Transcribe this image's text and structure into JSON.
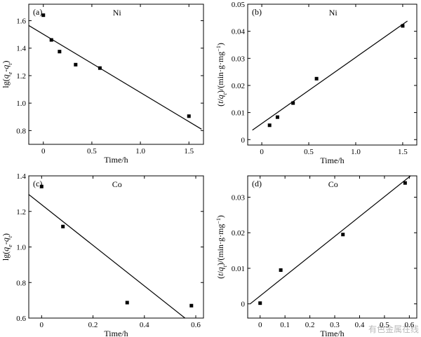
{
  "chart_data": [
    {
      "type": "scatter",
      "panel_label": "(a)",
      "annotation": "Ni",
      "xlabel": "Time/h",
      "ylabel": "lg(qe-qt)",
      "xlim": [
        -0.15,
        1.65
      ],
      "ylim": [
        0.7,
        1.72
      ],
      "xticks": [
        0,
        0.5,
        1.0,
        1.5
      ],
      "xtick_labels": [
        "0",
        "0.5",
        "1.0",
        "1.5"
      ],
      "yticks": [
        0.8,
        1.0,
        1.2,
        1.4,
        1.6
      ],
      "ytick_labels": [
        "0.8",
        "1.0",
        "1.2",
        "1.4",
        "1.6"
      ],
      "points": [
        [
          0.0,
          1.64
        ],
        [
          0.083,
          1.46
        ],
        [
          0.167,
          1.375
        ],
        [
          0.333,
          1.28
        ],
        [
          0.583,
          1.255
        ],
        [
          1.5,
          0.905
        ]
      ],
      "fit_line": [
        [
          -0.15,
          1.565
        ],
        [
          1.63,
          0.81
        ]
      ]
    },
    {
      "type": "scatter",
      "panel_label": "(b)",
      "annotation": "Ni",
      "xlabel": "Time/h",
      "ylabel": "(t/qt)/(min·g·mg⁻¹)",
      "xlim": [
        -0.15,
        1.65
      ],
      "ylim": [
        -0.002,
        0.05
      ],
      "xticks": [
        0,
        0.5,
        1.0,
        1.5
      ],
      "xtick_labels": [
        "0",
        "0.5",
        "1.0",
        "1.5"
      ],
      "yticks": [
        0,
        0.01,
        0.02,
        0.03,
        0.04,
        0.05
      ],
      "ytick_labels": [
        "0",
        "0.01",
        "0.02",
        "0.03",
        "0.04",
        "0.05"
      ],
      "points": [
        [
          0.083,
          0.0053
        ],
        [
          0.167,
          0.0083
        ],
        [
          0.333,
          0.0135
        ],
        [
          0.583,
          0.0225
        ],
        [
          1.5,
          0.042
        ]
      ],
      "fit_line": [
        [
          -0.1,
          0.0035
        ],
        [
          1.55,
          0.0438
        ]
      ]
    },
    {
      "type": "scatter",
      "panel_label": "(c)",
      "annotation": "Co",
      "xlabel": "Time/h",
      "ylabel": "lg(qe-qt)",
      "xlim": [
        -0.05,
        0.63
      ],
      "ylim": [
        0.6,
        1.4
      ],
      "xticks": [
        0,
        0.2,
        0.4,
        0.6
      ],
      "xtick_labels": [
        "0",
        "0.2",
        "0.4",
        "0.6"
      ],
      "yticks": [
        0.6,
        0.8,
        1.0,
        1.2,
        1.4
      ],
      "ytick_labels": [
        "0.6",
        "0.8",
        "1.0",
        "1.2",
        "1.4"
      ],
      "points": [
        [
          0.0,
          1.34
        ],
        [
          0.083,
          1.115
        ],
        [
          0.333,
          0.687
        ],
        [
          0.583,
          0.67
        ]
      ],
      "fit_line": [
        [
          -0.05,
          1.295
        ],
        [
          0.558,
          0.6
        ]
      ]
    },
    {
      "type": "scatter",
      "panel_label": "(d)",
      "annotation": "Co",
      "xlabel": "Time/h",
      "ylabel": "(t/qt)/(min·g·mg⁻¹)",
      "xlim": [
        -0.05,
        0.63
      ],
      "ylim": [
        -0.004,
        0.036
      ],
      "xticks": [
        0,
        0.1,
        0.2,
        0.3,
        0.4,
        0.5,
        0.6
      ],
      "xtick_labels": [
        "0",
        "0.1",
        "0.2",
        "0.3",
        "0.4",
        "0.5",
        "0.6"
      ],
      "yticks": [
        0,
        0.01,
        0.02,
        0.03
      ],
      "ytick_labels": [
        "0",
        "0.01",
        "0.02",
        "0.03"
      ],
      "points": [
        [
          0.0,
          0.0002
        ],
        [
          0.083,
          0.0095
        ],
        [
          0.333,
          0.0195
        ],
        [
          0.583,
          0.034
        ]
      ],
      "fit_line": [
        [
          -0.04,
          0.0
        ],
        [
          0.63,
          0.0374
        ]
      ]
    }
  ],
  "watermark": "有色金属在线"
}
